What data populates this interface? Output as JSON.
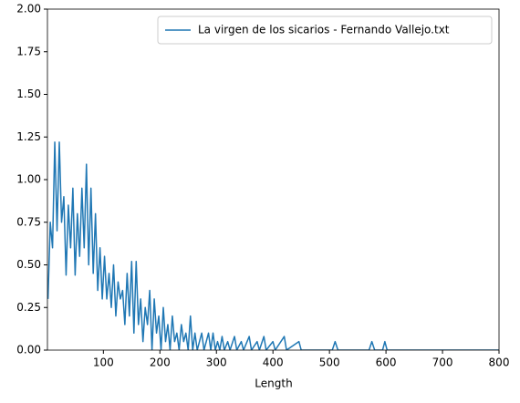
{
  "chart_data": {
    "type": "line",
    "xlabel": "Length",
    "x": [
      2,
      6,
      10,
      14,
      18,
      22,
      26,
      30,
      34,
      38,
      42,
      46,
      50,
      54,
      58,
      62,
      66,
      70,
      74,
      78,
      82,
      86,
      90,
      94,
      98,
      102,
      106,
      110,
      114,
      118,
      122,
      126,
      130,
      134,
      138,
      142,
      146,
      150,
      154,
      158,
      162,
      166,
      170,
      174,
      178,
      182,
      186,
      190,
      194,
      198,
      202,
      206,
      210,
      214,
      218,
      222,
      226,
      230,
      234,
      238,
      242,
      246,
      250,
      254,
      258,
      262,
      266,
      270,
      274,
      278,
      282,
      286,
      290,
      294,
      298,
      302,
      306,
      310,
      314,
      320,
      324,
      332,
      336,
      344,
      348,
      358,
      362,
      372,
      376,
      384,
      388,
      400,
      404,
      420,
      424,
      446,
      450,
      505,
      510,
      515,
      570,
      575,
      580,
      594,
      598,
      602,
      800
    ],
    "series": [
      {
        "name": "La virgen de los sicarios - Fernando Vallejo.txt",
        "color": "#1f77b4",
        "values": [
          0.3,
          0.75,
          0.6,
          1.22,
          0.7,
          1.22,
          0.75,
          0.9,
          0.44,
          0.85,
          0.6,
          0.95,
          0.44,
          0.8,
          0.55,
          0.95,
          0.6,
          1.09,
          0.5,
          0.95,
          0.45,
          0.8,
          0.35,
          0.6,
          0.3,
          0.55,
          0.3,
          0.45,
          0.25,
          0.5,
          0.2,
          0.4,
          0.3,
          0.35,
          0.15,
          0.45,
          0.2,
          0.52,
          0.1,
          0.52,
          0.15,
          0.3,
          0.05,
          0.25,
          0.15,
          0.35,
          0,
          0.3,
          0.1,
          0.2,
          0,
          0.25,
          0.05,
          0.15,
          0,
          0.2,
          0.05,
          0.1,
          0,
          0.15,
          0.05,
          0.1,
          0,
          0.2,
          0,
          0.1,
          0,
          0.05,
          0.1,
          0,
          0.05,
          0.1,
          0,
          0.1,
          0,
          0.05,
          0,
          0.08,
          0,
          0.05,
          0,
          0.08,
          0,
          0.05,
          0,
          0.08,
          0,
          0.05,
          0,
          0.08,
          0,
          0.05,
          0,
          0.08,
          0,
          0.05,
          0,
          0,
          0.05,
          0,
          0,
          0.05,
          0,
          0,
          0.05,
          0,
          0
        ]
      }
    ],
    "xlim": [
      1,
      800
    ],
    "xticks": [
      100,
      200,
      300,
      400,
      500,
      600,
      700,
      800
    ],
    "ylim": [
      0,
      2
    ],
    "yticks": [
      {
        "value": 0,
        "label": "0.00"
      },
      {
        "value": 0.25,
        "label": "0.25"
      },
      {
        "value": 0.5,
        "label": "0.50"
      },
      {
        "value": 0.75,
        "label": "0.75"
      },
      {
        "value": 1,
        "label": "1.00"
      },
      {
        "value": 1.25,
        "label": "1.25"
      },
      {
        "value": 1.5,
        "label": "1.50"
      },
      {
        "value": 1.75,
        "label": "1.75"
      },
      {
        "value": 2,
        "label": "2.00"
      }
    ],
    "legend": "upper right"
  }
}
